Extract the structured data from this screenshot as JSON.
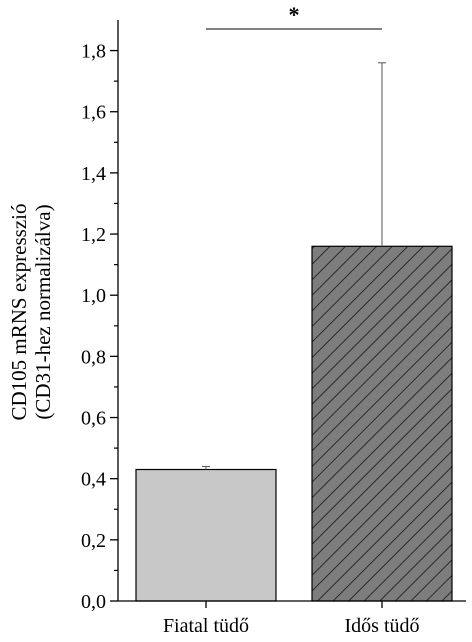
{
  "chart_data": {
    "type": "bar",
    "categories": [
      "Fiatal tüdő",
      "Idős tüdő"
    ],
    "values": [
      0.43,
      1.16
    ],
    "error_plus": [
      0.01,
      0.6
    ],
    "ylabel_line1": "CD105 mRNS expresszió",
    "ylabel_line2": "(CD31-hez normalizálva)",
    "ylim": [
      0,
      1.9
    ],
    "yticks": [
      "0,0",
      "0,2",
      "0,4",
      "0,6",
      "0,8",
      "1,0",
      "1,2",
      "1,4",
      "1,6",
      "1,8"
    ],
    "significance_label": "*",
    "grid": false,
    "bar_colors": [
      "#c8c8c8",
      "#7d7d7d"
    ],
    "bar_patterns": [
      "solid",
      "diagonal-hatch"
    ]
  }
}
